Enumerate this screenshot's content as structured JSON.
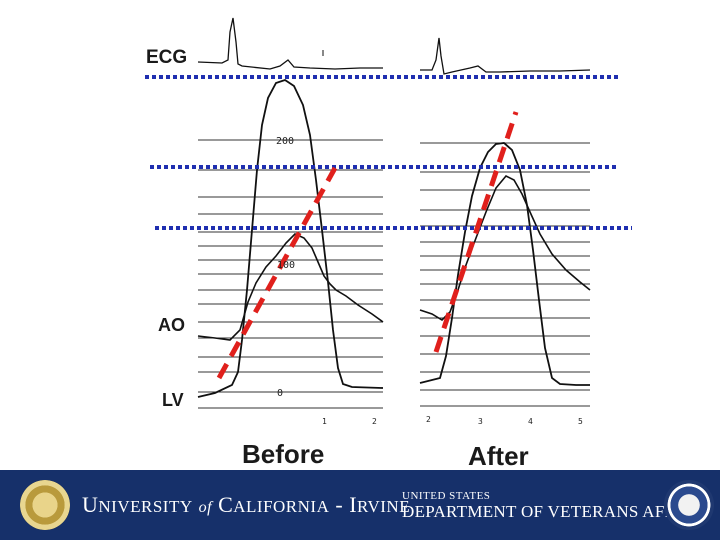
{
  "labels": {
    "ecg": "ECG",
    "ao": "AO",
    "lv": "LV",
    "before": "Before",
    "after": "After"
  },
  "scale": {
    "top": "200",
    "mid": "100",
    "zero": "0"
  },
  "ticks": {
    "before": [
      "1",
      "2"
    ],
    "after": [
      "2",
      "3",
      "4",
      "5"
    ]
  },
  "footer": {
    "uci": {
      "u": "U",
      "niversity": "NIVERSITY",
      "of": "of",
      "c": "C",
      "alifornia": "ALIFORNIA",
      "dash": "-",
      "i": "I",
      "rvine": "RVINE"
    },
    "va_top": "UNITED STATES",
    "va_main": "DEPARTMENT OF VETERANS AFFAIRS"
  },
  "colors": {
    "dotted_lines": "#1f2fb0",
    "dashed_slopes": "#e0201c",
    "footer_bg": "#16306a",
    "trace": "#111111"
  }
}
